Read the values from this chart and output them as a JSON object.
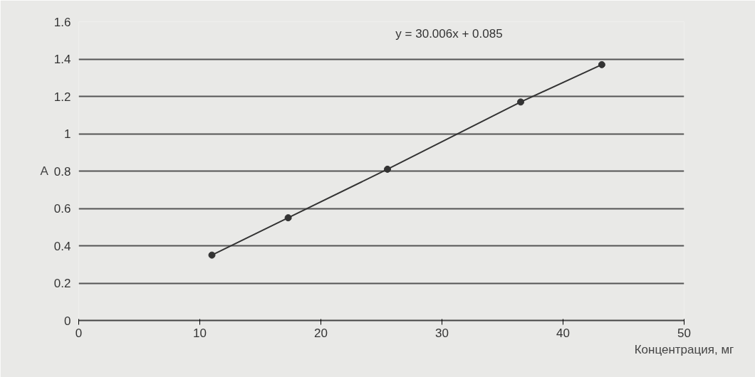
{
  "chart_data": {
    "type": "line",
    "ylabel": "A",
    "xlabel": "Концентрация, мг",
    "x": [
      11,
      17.3,
      25.5,
      36.5,
      43.2
    ],
    "series": [
      {
        "color": "#333333",
        "values": [
          0.35,
          0.55,
          0.81,
          1.17,
          1.37
        ]
      }
    ],
    "marker": "circle",
    "line_style": "solid",
    "xlim": [
      0,
      50
    ],
    "xticks": [
      0,
      10,
      20,
      30,
      40,
      50
    ],
    "ylim": [
      0,
      1.6
    ],
    "yticks": [
      {
        "value": 0,
        "label": "0"
      },
      {
        "value": 0.2,
        "label": "0.2"
      },
      {
        "value": 0.4,
        "label": "0.4"
      },
      {
        "value": 0.6,
        "label": "0.6"
      },
      {
        "value": 0.8,
        "label": "0.8"
      },
      {
        "value": 1,
        "label": "1"
      },
      {
        "value": 1.2,
        "label": "1.2"
      },
      {
        "value": 1.4,
        "label": "1.4"
      },
      {
        "value": 1.6,
        "label": "1.6"
      }
    ],
    "grid": "y",
    "annotations": [
      "y = 30.006x + 0.085"
    ]
  }
}
